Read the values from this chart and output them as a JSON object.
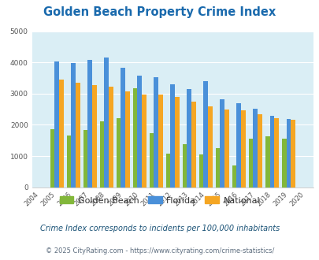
{
  "title": "Golden Beach Property Crime Index",
  "years_all": [
    2004,
    2005,
    2006,
    2007,
    2008,
    2009,
    2010,
    2011,
    2012,
    2013,
    2014,
    2015,
    2016,
    2017,
    2018,
    2019,
    2020
  ],
  "plot_years": [
    2005,
    2006,
    2007,
    2008,
    2009,
    2010,
    2011,
    2012,
    2013,
    2014,
    2015,
    2016,
    2017,
    2018,
    2019
  ],
  "golden_beach": [
    1850,
    1650,
    1840,
    2100,
    2200,
    3180,
    1720,
    1080,
    1370,
    1060,
    1260,
    700,
    1560,
    1640,
    1560
  ],
  "florida": [
    4020,
    3990,
    4090,
    4160,
    3840,
    3580,
    3520,
    3300,
    3140,
    3400,
    2820,
    2700,
    2520,
    2300,
    2180
  ],
  "national": [
    3460,
    3350,
    3270,
    3230,
    3060,
    2970,
    2960,
    2900,
    2750,
    2600,
    2490,
    2460,
    2330,
    2220,
    2150
  ],
  "golden_beach_color": "#82b73a",
  "florida_color": "#4a90d9",
  "national_color": "#f5a623",
  "bg_color": "#daeef5",
  "ylim": [
    0,
    5000
  ],
  "yticks": [
    0,
    1000,
    2000,
    3000,
    4000,
    5000
  ],
  "subtitle": "Crime Index corresponds to incidents per 100,000 inhabitants",
  "footer": "© 2025 CityRating.com - https://www.cityrating.com/crime-statistics/",
  "title_color": "#1a6aad",
  "subtitle_color": "#1a5276",
  "footer_color": "#5d6d7e",
  "footer_link_color": "#2e86c1"
}
